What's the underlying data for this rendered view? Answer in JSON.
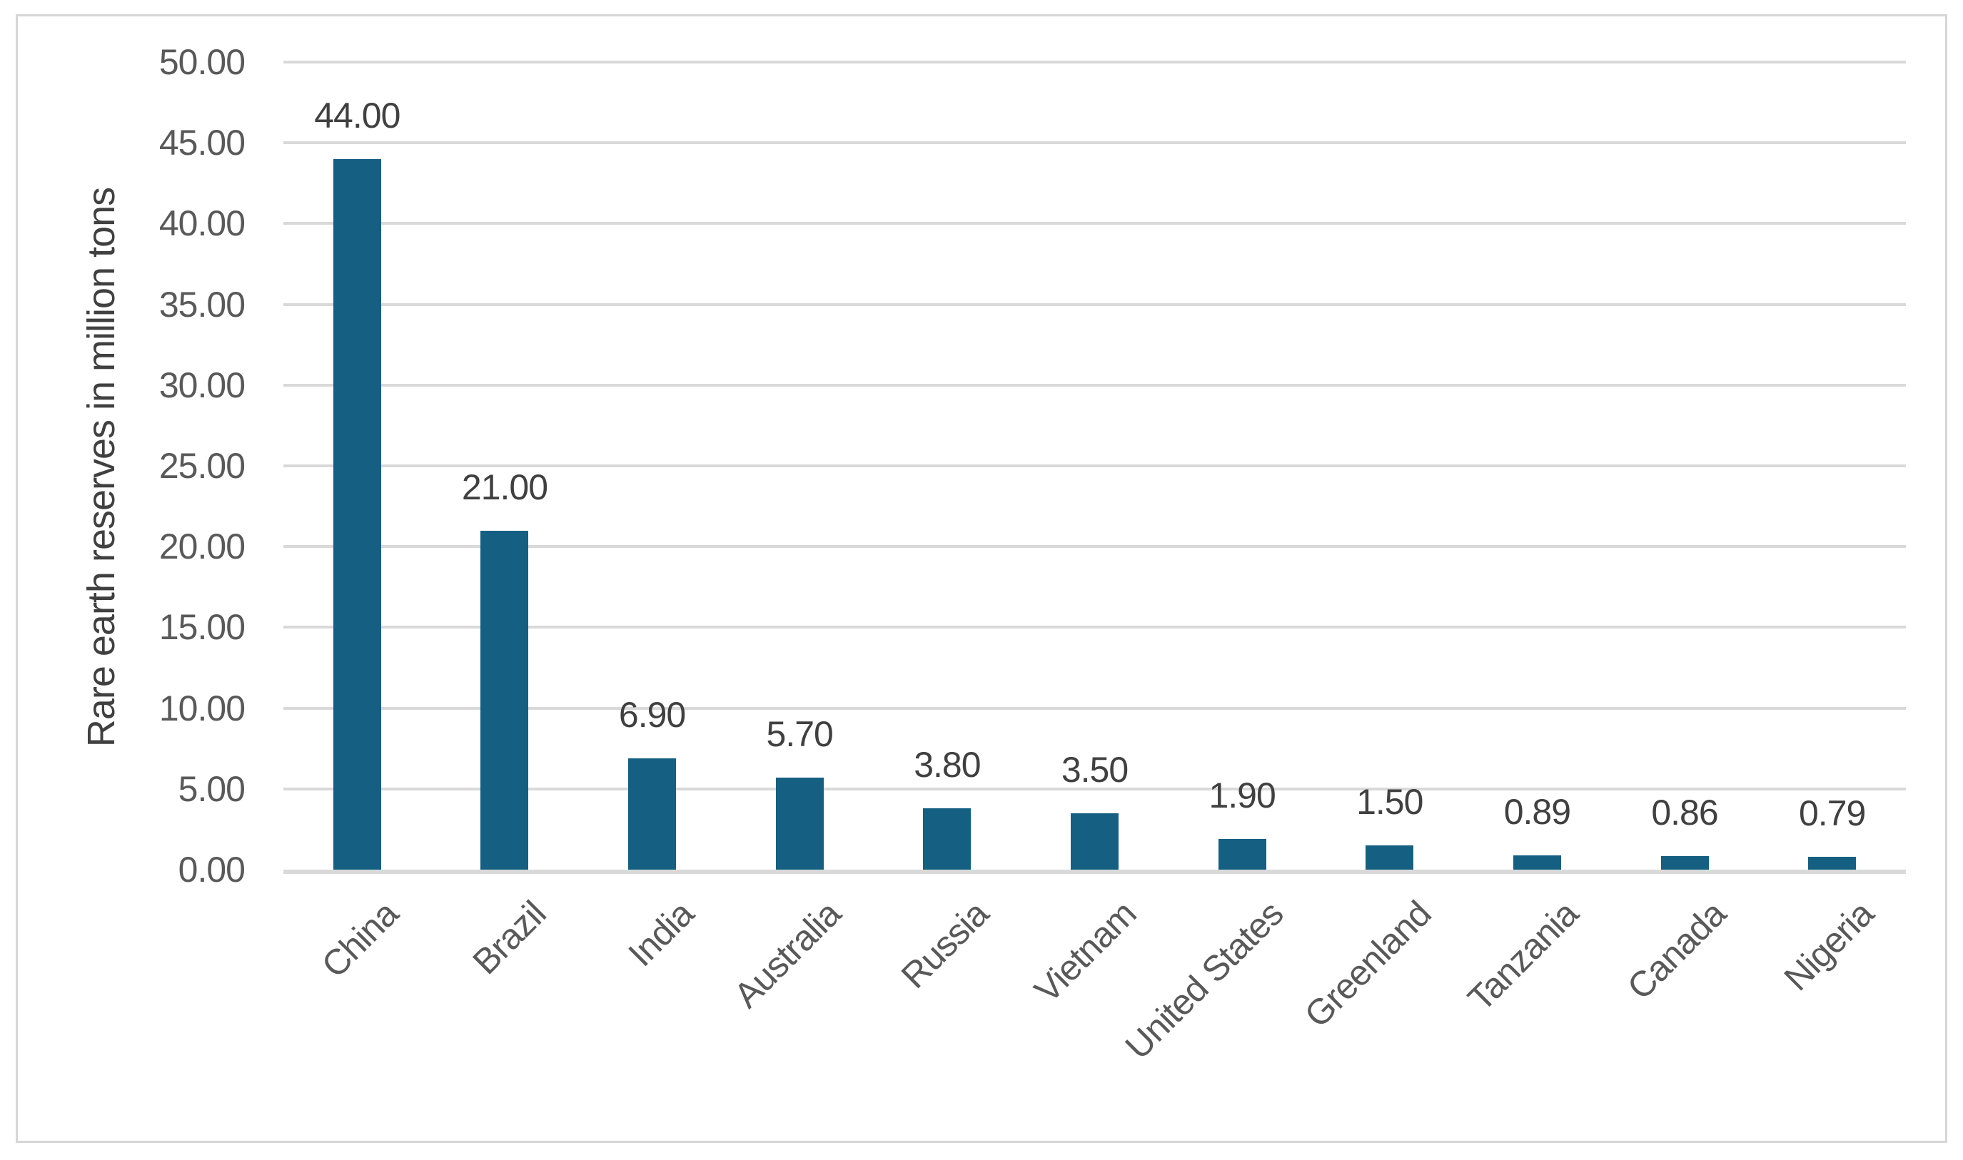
{
  "chart_data": {
    "type": "bar",
    "categories": [
      "China",
      "Brazil",
      "India",
      "Australia",
      "Russia",
      "Vietnam",
      "United States",
      "Greenland",
      "Tanzania",
      "Canada",
      "Nigeria"
    ],
    "values": [
      44.0,
      21.0,
      6.9,
      5.7,
      3.8,
      3.5,
      1.9,
      1.5,
      0.89,
      0.86,
      0.79
    ],
    "data_labels": [
      "44.00",
      "21.00",
      "6.90",
      "5.70",
      "3.80",
      "3.50",
      "1.90",
      "1.50",
      "0.89",
      "0.86",
      "0.79"
    ],
    "title": "",
    "xlabel": "",
    "ylabel": "Rare earth reserves in million tons",
    "ylim": [
      0,
      50
    ],
    "ytick_step": 5,
    "ytick_labels": [
      "0.00",
      "5.00",
      "10.00",
      "15.00",
      "20.00",
      "25.00",
      "30.00",
      "35.00",
      "40.00",
      "45.00",
      "50.00"
    ],
    "grid": true,
    "legend": false,
    "category_label_rotation_deg": 45,
    "colors": {
      "bar": "#156082",
      "gridline": "#d9d9d9",
      "axis_line": "#d9d9d9",
      "tick_label": "#595959",
      "data_label": "#404040",
      "category_label": "#595959",
      "frame_border": "#d6d6d6",
      "background": "#ffffff"
    }
  }
}
